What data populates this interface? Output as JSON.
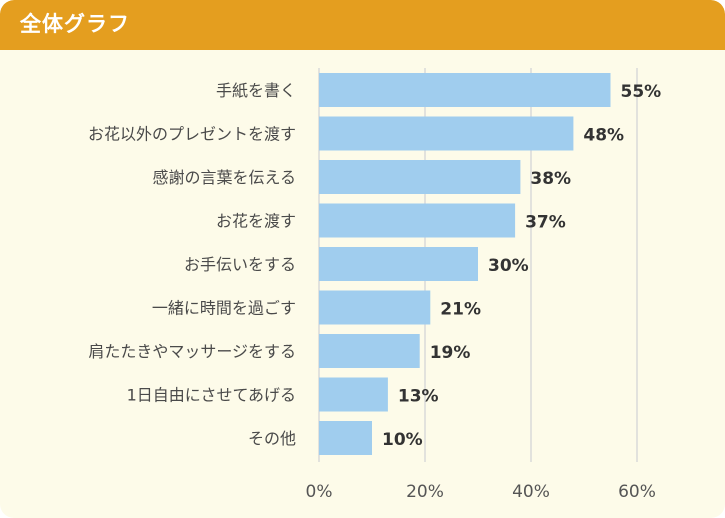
{
  "header": {
    "title": "全体グラフ"
  },
  "colors": {
    "header_bg": "#e49e1f",
    "panel_bg": "#fdfbe9",
    "bar": "#a0cdee",
    "grid": "#d9d9d9"
  },
  "chart_data": {
    "type": "bar",
    "orientation": "horizontal",
    "title": "全体グラフ",
    "categories": [
      "手紙を書く",
      "お花以外のプレゼントを渡す",
      "感謝の言葉を伝える",
      "お花を渡す",
      "お手伝いをする",
      "一緒に時間を過ごす",
      "肩たたきやマッサージをする",
      "1日自由にさせてあげる",
      "その他"
    ],
    "values": [
      55,
      48,
      38,
      37,
      30,
      21,
      19,
      13,
      10
    ],
    "value_labels": [
      "55%",
      "48%",
      "38%",
      "37%",
      "30%",
      "21%",
      "19%",
      "13%",
      "10%"
    ],
    "xlim": [
      0,
      60
    ],
    "xticks": [
      0,
      20,
      40,
      60
    ],
    "xtick_labels": [
      "0%",
      "20%",
      "40%",
      "60%"
    ],
    "xlabel": "",
    "ylabel": "",
    "grid": true,
    "legend": "none"
  }
}
